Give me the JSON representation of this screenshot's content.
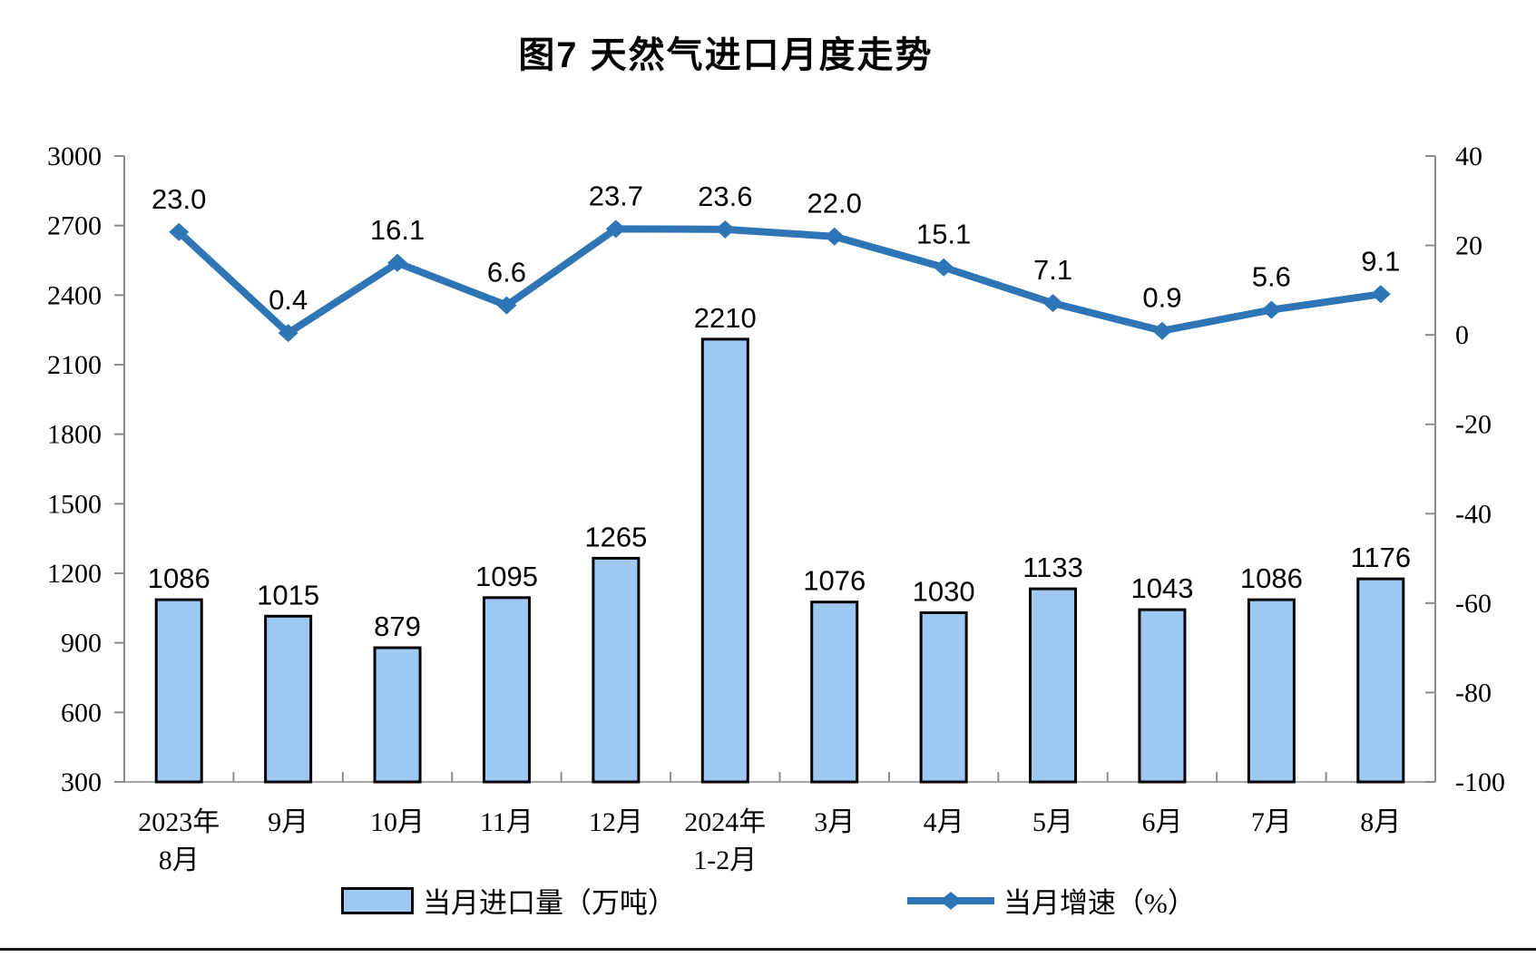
{
  "title": "图7 天然气进口月度走势",
  "legend": {
    "bar_label": "当月进口量（万吨）",
    "line_label": "当月增速（%）"
  },
  "colors": {
    "bar_fill": "#9DC9F3",
    "bar_border": "#000000",
    "line": "#2E75B6",
    "axis": "#8C8C8C",
    "baseline": "#A6A6A6",
    "text": "#000000"
  },
  "chart_data": {
    "type": "bar+line",
    "title": "图7 天然气进口月度走势",
    "categories": [
      [
        "2023年",
        "8月"
      ],
      [
        "9月"
      ],
      [
        "10月"
      ],
      [
        "11月"
      ],
      [
        "12月"
      ],
      [
        "2024年",
        "1-2月"
      ],
      [
        "3月"
      ],
      [
        "4月"
      ],
      [
        "5月"
      ],
      [
        "6月"
      ],
      [
        "7月"
      ],
      [
        "8月"
      ]
    ],
    "series": [
      {
        "name": "当月进口量（万吨）",
        "type": "bar",
        "axis": "left",
        "values": [
          1086,
          1015,
          879,
          1095,
          1265,
          2210,
          1076,
          1030,
          1133,
          1043,
          1086,
          1176
        ],
        "labels": [
          "1086",
          "1015",
          "879",
          "1095",
          "1265",
          "2210",
          "1076",
          "1030",
          "1133",
          "1043",
          "1086",
          "1176"
        ]
      },
      {
        "name": "当月增速（%）",
        "type": "line",
        "axis": "right",
        "values": [
          23.0,
          0.4,
          16.1,
          6.6,
          23.7,
          23.6,
          22.0,
          15.1,
          7.1,
          0.9,
          5.6,
          9.1
        ],
        "labels": [
          "23.0",
          "0.4",
          "16.1",
          "6.6",
          "23.7",
          "23.6",
          "22.0",
          "15.1",
          "7.1",
          "0.9",
          "5.6",
          "9.1"
        ]
      }
    ],
    "left_axis": {
      "min": 300,
      "max": 3000,
      "step": 300,
      "ticks": [
        300,
        600,
        900,
        1200,
        1500,
        1800,
        2100,
        2400,
        2700,
        3000
      ]
    },
    "right_axis": {
      "min": -100,
      "max": 40,
      "step": 20,
      "ticks": [
        -100,
        -80,
        -60,
        -40,
        -20,
        0,
        20,
        40
      ]
    },
    "grid": "off",
    "legend_position": "bottom"
  }
}
